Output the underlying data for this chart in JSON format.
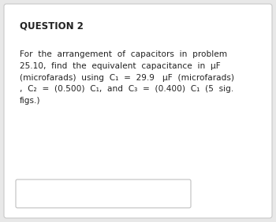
{
  "title": "QUESTION 2",
  "bg_color": "#e8e8e8",
  "card_color": "#ffffff",
  "card_border": "#c8c8c8",
  "title_fontsize": 8.5,
  "body_fontsize": 7.6,
  "body_text_line1": "For  the  arrangement  of  capacitors  in  problem",
  "body_text_line2": "25.10,  find  the  equivalent  capacitance  in  μF",
  "body_text_line3": "(microfarads)  using  C₁  =  29.9   μF  (microfarads)",
  "body_text_line4": ",  C₂  =  (0.500)  C₁,  and  C₃  =  (0.400)  C₁  (5  sig.",
  "body_text_line5": "figs.)",
  "input_box_color": "#ffffff",
  "input_box_border": "#c0c0c0",
  "text_color": "#222222"
}
